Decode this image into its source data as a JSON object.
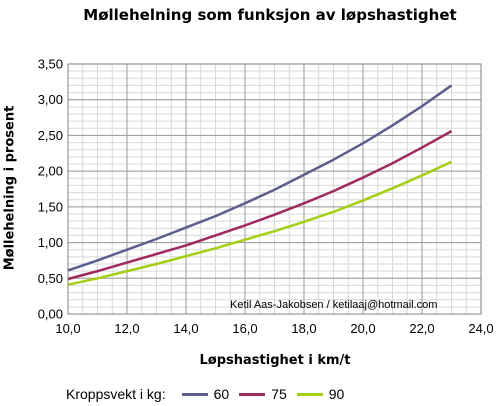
{
  "chart_data": {
    "type": "line",
    "title": "Møllehelning som funksjon av løpshastighet",
    "xlabel": "Løpshastighet i km/t",
    "ylabel": "Møllehelning i prosent",
    "xlim": [
      10,
      24
    ],
    "ylim": [
      0,
      3.5
    ],
    "x_ticks": [
      "10,0",
      "12,0",
      "14,0",
      "16,0",
      "18,0",
      "20,0",
      "22,0",
      "24,0"
    ],
    "y_ticks": [
      "0,00",
      "0,50",
      "1,00",
      "1,50",
      "2,00",
      "2,50",
      "3,00",
      "3,50"
    ],
    "x_tick_values": [
      10,
      12,
      14,
      16,
      18,
      20,
      22,
      24
    ],
    "y_tick_values": [
      0,
      0.5,
      1,
      1.5,
      2,
      2.5,
      3,
      3.5
    ],
    "grid": true,
    "legend_title": "Kroppsvekt i kg:",
    "legend_position": "bottom",
    "annotation": "Ketil Aas-Jakobsen / ketilaaj@hotmail.com",
    "x": [
      10,
      11,
      12,
      13,
      14,
      15,
      16,
      17,
      18,
      19,
      20,
      21,
      22,
      23
    ],
    "series": [
      {
        "name": "60",
        "color": "#5b5e8e",
        "values": [
          0.61,
          0.75,
          0.9,
          1.05,
          1.21,
          1.37,
          1.55,
          1.74,
          1.95,
          2.16,
          2.39,
          2.64,
          2.91,
          3.2
        ]
      },
      {
        "name": "75",
        "color": "#a0295e",
        "values": [
          0.49,
          0.6,
          0.72,
          0.84,
          0.96,
          1.1,
          1.24,
          1.39,
          1.55,
          1.72,
          1.91,
          2.11,
          2.33,
          2.56
        ]
      },
      {
        "name": "90",
        "color": "#a4cf13",
        "values": [
          0.41,
          0.5,
          0.6,
          0.7,
          0.81,
          0.92,
          1.04,
          1.16,
          1.29,
          1.43,
          1.59,
          1.76,
          1.94,
          2.13
        ]
      }
    ]
  }
}
